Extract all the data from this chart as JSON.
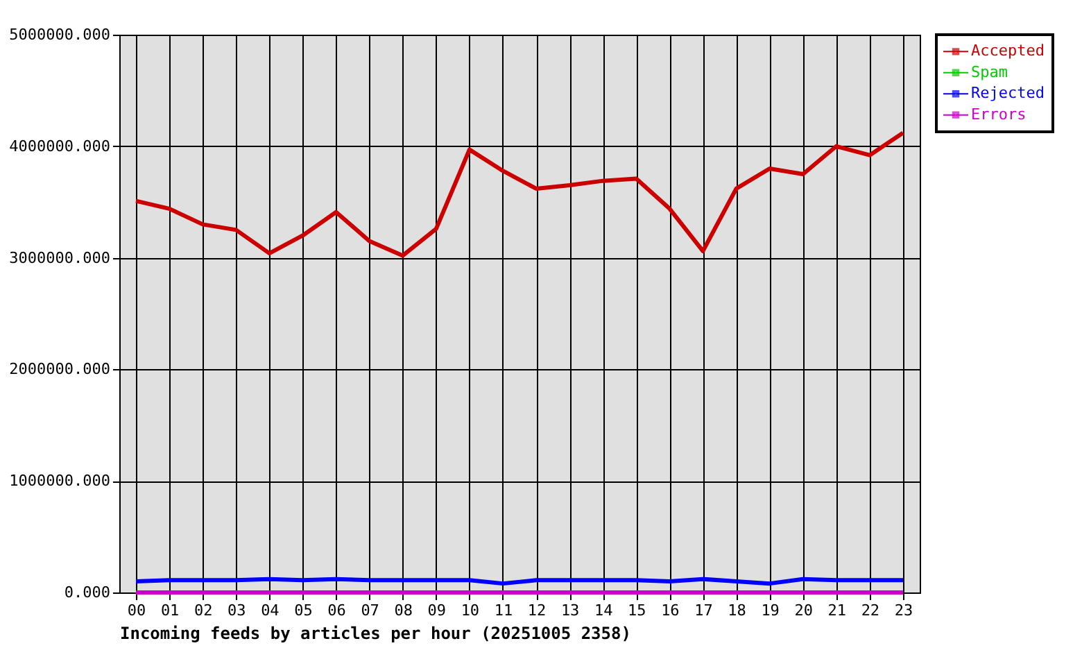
{
  "chart_data": {
    "type": "line",
    "xlabel": "Incoming feeds by articles per hour (20251005 2358)",
    "categories": [
      "00",
      "01",
      "02",
      "03",
      "04",
      "05",
      "06",
      "07",
      "08",
      "09",
      "10",
      "11",
      "12",
      "13",
      "14",
      "15",
      "16",
      "17",
      "18",
      "19",
      "20",
      "21",
      "22",
      "23"
    ],
    "series": [
      {
        "name": "Accepted",
        "color": "#cc0000",
        "values": [
          3510000,
          3440000,
          3300000,
          3250000,
          3040000,
          3200000,
          3410000,
          3150000,
          3020000,
          3260000,
          3970000,
          3780000,
          3620000,
          3650000,
          3690000,
          3710000,
          3440000,
          3060000,
          3620000,
          3800000,
          3750000,
          4000000,
          3920000,
          4120000
        ]
      },
      {
        "name": "Spam",
        "color": "#00cc00",
        "values": [
          null,
          null,
          null,
          null,
          null,
          null,
          null,
          null,
          null,
          null,
          null,
          null,
          null,
          null,
          null,
          null,
          null,
          null,
          null,
          null,
          null,
          null,
          null,
          null
        ]
      },
      {
        "name": "Rejected",
        "color": "#0000ff",
        "values": [
          100000,
          110000,
          110000,
          110000,
          120000,
          110000,
          120000,
          110000,
          110000,
          110000,
          110000,
          80000,
          110000,
          110000,
          110000,
          110000,
          100000,
          120000,
          100000,
          80000,
          120000,
          110000,
          110000,
          110000
        ]
      },
      {
        "name": "Errors",
        "color": "#cc00cc",
        "values": [
          0,
          0,
          0,
          0,
          0,
          0,
          0,
          0,
          0,
          0,
          0,
          0,
          0,
          0,
          0,
          0,
          0,
          0,
          0,
          0,
          0,
          0,
          0,
          0
        ]
      }
    ],
    "ylim": [
      0,
      5000000
    ],
    "yticks": [
      {
        "value": 0,
        "label": "0.000"
      },
      {
        "value": 1000000,
        "label": "1000000.000"
      },
      {
        "value": 2000000,
        "label": "2000000.000"
      },
      {
        "value": 3000000,
        "label": "3000000.000"
      },
      {
        "value": 4000000,
        "label": "4000000.000"
      },
      {
        "value": 5000000,
        "label": "5000000.000"
      }
    ],
    "grid": true,
    "legend": "top right",
    "marker": "none",
    "line_style": "solid"
  }
}
